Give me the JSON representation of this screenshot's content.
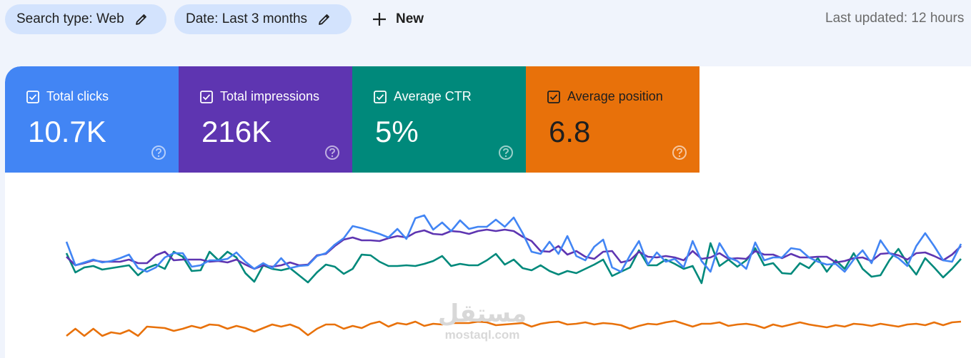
{
  "filters": {
    "search_type": "Search type: Web",
    "date": "Date: Last 3 months",
    "new_label": "New"
  },
  "last_updated": "Last updated: 12 hours",
  "metrics": [
    {
      "label": "Total clicks",
      "value": "10.7K",
      "color": "#4285f4",
      "checked": true
    },
    {
      "label": "Total impressions",
      "value": "216K",
      "color": "#5e35b1",
      "checked": true
    },
    {
      "label": "Average CTR",
      "value": "5%",
      "color": "#00897b",
      "checked": true
    },
    {
      "label": "Average position",
      "value": "6.8",
      "color": "#e8710a",
      "checked": true
    }
  ],
  "icons": {
    "edit": "pencil-icon",
    "add": "plus-icon",
    "checkbox": "checkbox-checked-icon",
    "help": "help-circle-icon"
  },
  "watermark": {
    "arabic": "مستقل",
    "latin": "mostaql.com"
  },
  "chart_data": {
    "type": "line",
    "title": "",
    "xlabel": "",
    "ylabel": "",
    "grid": false,
    "legend": "none",
    "series": [
      {
        "name": "Total clicks",
        "color": "#4285f4",
        "values": [
          42,
          9,
          13,
          17,
          13,
          15,
          19,
          24,
          5,
          0,
          6,
          20,
          26,
          26,
          7,
          9,
          16,
          16,
          18,
          27,
          14,
          4,
          12,
          5,
          19,
          5,
          8,
          9,
          22,
          26,
          38,
          47,
          64,
          61,
          57,
          53,
          48,
          60,
          46,
          75,
          79,
          59,
          69,
          57,
          72,
          60,
          63,
          63,
          73,
          63,
          76,
          54,
          28,
          25,
          42,
          25,
          50,
          22,
          16,
          35,
          45,
          6,
          0,
          23,
          43,
          10,
          27,
          14,
          18,
          6,
          43,
          15,
          0,
          40,
          20,
          15,
          4,
          41,
          16,
          20,
          20,
          33,
          31,
          20,
          14,
          10,
          11,
          0,
          17,
          30,
          12,
          44,
          26,
          19,
          8,
          36,
          54,
          36,
          16,
          14,
          39
        ]
      },
      {
        "name": "Total impressions",
        "color": "#5e35b1",
        "values": [
          21,
          9,
          12,
          16,
          14,
          14,
          14,
          17,
          12,
          12,
          23,
          28,
          16,
          17,
          17,
          17,
          14,
          15,
          13,
          17,
          10,
          4,
          9,
          7,
          9,
          13,
          9,
          10,
          23,
          25,
          36,
          45,
          48,
          44,
          44,
          43,
          47,
          50,
          48,
          55,
          58,
          53,
          52,
          57,
          56,
          53,
          57,
          59,
          57,
          59,
          57,
          49,
          43,
          29,
          28,
          36,
          24,
          29,
          21,
          18,
          28,
          29,
          13,
          16,
          28,
          21,
          20,
          22,
          20,
          16,
          29,
          18,
          20,
          26,
          18,
          19,
          18,
          29,
          24,
          24,
          19,
          25,
          20,
          20,
          21,
          21,
          13,
          15,
          19,
          20,
          15,
          25,
          26,
          23,
          17,
          26,
          27,
          22,
          16,
          24,
          36
        ]
      },
      {
        "name": "Average CTR",
        "color": "#00897b",
        "values": [
          26,
          -1,
          6,
          8,
          3,
          5,
          7,
          9,
          -5,
          5,
          10,
          4,
          28,
          21,
          1,
          2,
          28,
          16,
          28,
          20,
          -2,
          -14,
          9,
          4,
          2,
          5,
          -5,
          -15,
          -1,
          10,
          7,
          -3,
          4,
          24,
          23,
          14,
          8,
          8,
          9,
          8,
          11,
          15,
          22,
          8,
          11,
          9,
          9,
          16,
          25,
          10,
          17,
          5,
          2,
          9,
          1,
          -4,
          1,
          -2,
          4,
          10,
          17,
          -6,
          0,
          6,
          30,
          9,
          9,
          17,
          11,
          4,
          8,
          -16,
          40,
          8,
          17,
          7,
          16,
          33,
          9,
          12,
          -2,
          -3,
          12,
          5,
          19,
          0,
          16,
          4,
          26,
          4,
          -7,
          -5,
          16,
          32,
          12,
          -4,
          19,
          6,
          -8,
          4,
          18
        ]
      },
      {
        "name": "Average position",
        "color": "#e8710a",
        "values": [
          -90,
          -80,
          -90,
          -80,
          -90,
          -85,
          -87,
          -82,
          -90,
          -77,
          -78,
          -79,
          -83,
          -80,
          -76,
          -79,
          -74,
          -75,
          -80,
          -76,
          -79,
          -84,
          -79,
          -74,
          -77,
          -74,
          -79,
          -89,
          -80,
          -74,
          -74,
          -80,
          -76,
          -79,
          -73,
          -70,
          -77,
          -72,
          -74,
          -70,
          -76,
          -73,
          -74,
          -72,
          -72,
          -72,
          -70,
          -71,
          -75,
          -74,
          -73,
          -72,
          -77,
          -73,
          -71,
          -70,
          -74,
          -73,
          -71,
          -74,
          -72,
          -73,
          -75,
          -80,
          -76,
          -73,
          -74,
          -71,
          -69,
          -73,
          -77,
          -73,
          -73,
          -71,
          -76,
          -74,
          -73,
          -75,
          -79,
          -74,
          -77,
          -74,
          -71,
          -74,
          -76,
          -78,
          -75,
          -77,
          -73,
          -74,
          -76,
          -73,
          -75,
          -77,
          -74,
          -73,
          -75,
          -71,
          -75,
          -71,
          -70
        ]
      }
    ]
  }
}
